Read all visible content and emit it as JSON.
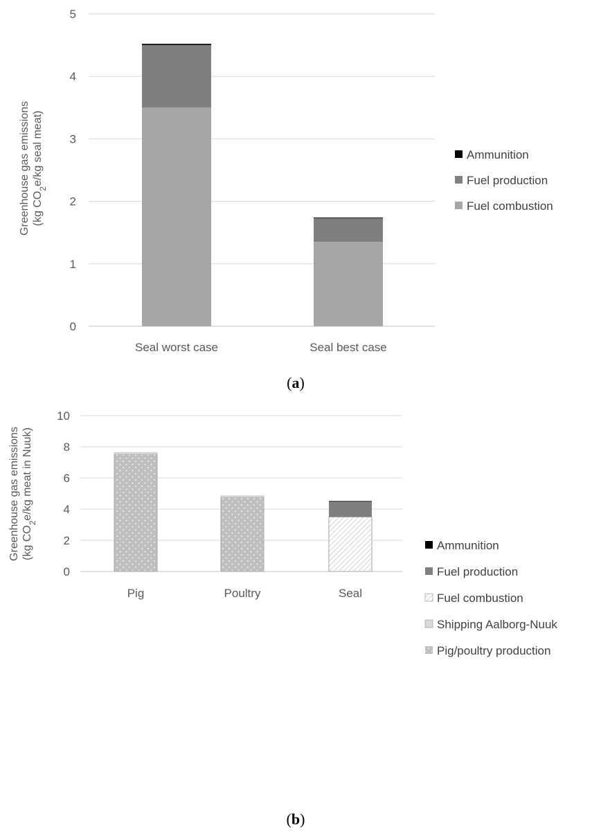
{
  "chart_data": [
    {
      "type": "bar",
      "stacked": true,
      "caption": "a",
      "categories": [
        "Seal worst case",
        "Seal best case"
      ],
      "series": [
        {
          "name": "Fuel combustion",
          "values": [
            3.5,
            1.35
          ],
          "color": "#a6a6a6",
          "pattern": "solid"
        },
        {
          "name": "Fuel production",
          "values": [
            1.0,
            0.38
          ],
          "color": "#7f7f7f",
          "pattern": "solid"
        },
        {
          "name": "Ammunition",
          "values": [
            0.02,
            0.01
          ],
          "color": "#000000",
          "pattern": "solid"
        }
      ],
      "legend_order": [
        "Ammunition",
        "Fuel production",
        "Fuel combustion"
      ],
      "ylabel_line1": "Greenhouse gas emissions",
      "ylabel_line2_pre": "(kg CO",
      "ylabel_line2_sub": "2",
      "ylabel_line2_post": "e/kg seal meat)",
      "ylim": [
        0,
        5
      ],
      "yticks": [
        "0",
        "1",
        "2",
        "3",
        "4",
        "5"
      ],
      "grid": true,
      "legend_position": "right"
    },
    {
      "type": "bar",
      "stacked": true,
      "caption": "b",
      "categories": [
        "Pig",
        "Poultry",
        "Seal"
      ],
      "series": [
        {
          "name": "Pig/poultry production",
          "values": [
            7.52,
            4.75,
            0
          ],
          "color": "#bfbfbf",
          "pattern": "dots"
        },
        {
          "name": "Shipping Aalborg-Nuuk",
          "values": [
            0.1,
            0.1,
            0
          ],
          "color": "#d9d9d9",
          "pattern": "solid"
        },
        {
          "name": "Fuel combustion",
          "values": [
            0,
            0,
            3.5
          ],
          "color": "#ffffff",
          "pattern": "hatch"
        },
        {
          "name": "Fuel production",
          "values": [
            0,
            0,
            1.0
          ],
          "color": "#7f7f7f",
          "pattern": "solid"
        },
        {
          "name": "Ammunition",
          "values": [
            0,
            0,
            0.02
          ],
          "color": "#000000",
          "pattern": "solid"
        }
      ],
      "legend_order": [
        "Ammunition",
        "Fuel production",
        "Fuel combustion",
        "Shipping Aalborg-Nuuk",
        "Pig/poultry production"
      ],
      "ylabel_line1": "Greenhouse gas emissions",
      "ylabel_line2_pre": "(kg CO",
      "ylabel_line2_sub": "2",
      "ylabel_line2_post": "e/kg meat in Nuuk)",
      "ylim": [
        0,
        10
      ],
      "yticks": [
        "0",
        "2",
        "4",
        "6",
        "8",
        "10"
      ],
      "grid": true,
      "legend_position": "right"
    }
  ]
}
